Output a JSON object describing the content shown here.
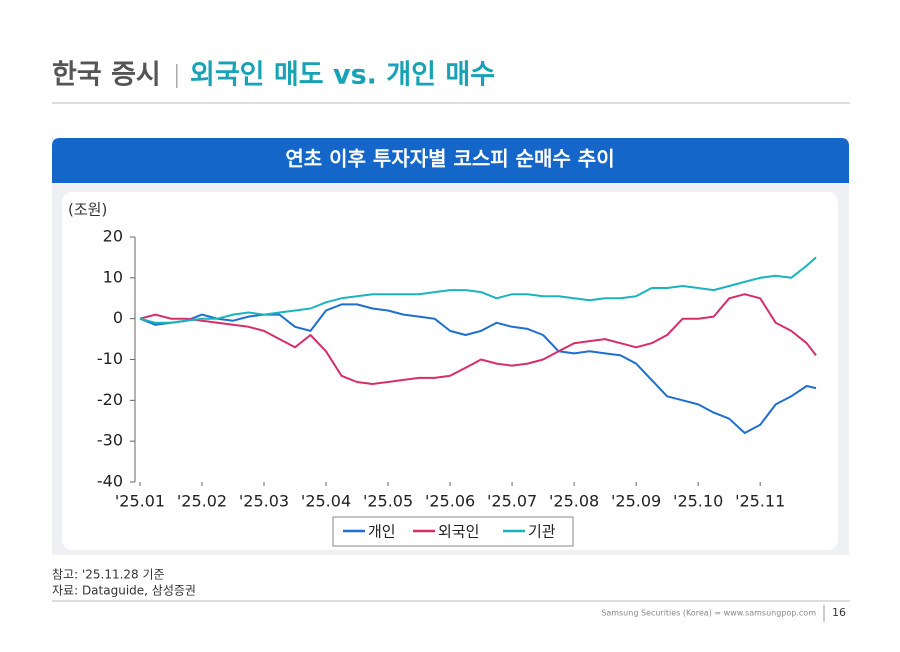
{
  "header": {
    "title": "한국 증시",
    "subtitle": "외국인 매도 vs. 개인 매수"
  },
  "chart_data": {
    "type": "line",
    "title": "연초 이후 투자자별 코스피 순매수 추이",
    "y_label": "(조원)",
    "x": [
      1.0,
      1.25,
      1.5,
      1.75,
      2.0,
      2.25,
      2.5,
      2.75,
      3.0,
      3.25,
      3.5,
      3.75,
      4.0,
      4.25,
      4.5,
      4.75,
      5.0,
      5.25,
      5.5,
      5.75,
      6.0,
      6.25,
      6.5,
      6.75,
      7.0,
      7.25,
      7.5,
      7.75,
      8.0,
      8.25,
      8.5,
      8.75,
      9.0,
      9.25,
      9.5,
      9.75,
      10.0,
      10.25,
      10.5,
      10.75,
      11.0,
      11.25,
      11.5,
      11.75,
      11.9
    ],
    "xlim": [
      0.92,
      11.9
    ],
    "xticks": [
      {
        "value": 1,
        "label": "'25.01"
      },
      {
        "value": 2,
        "label": "'25.02"
      },
      {
        "value": 3,
        "label": "'25.03"
      },
      {
        "value": 4,
        "label": "'25.04"
      },
      {
        "value": 5,
        "label": "'25.05"
      },
      {
        "value": 6,
        "label": "'25.06"
      },
      {
        "value": 7,
        "label": "'25.07"
      },
      {
        "value": 8,
        "label": "'25.08"
      },
      {
        "value": 9,
        "label": "'25.09"
      },
      {
        "value": 10,
        "label": "'25.10"
      },
      {
        "value": 11,
        "label": "'25.11"
      }
    ],
    "ylim": [
      -40,
      20
    ],
    "yticks": [
      -40,
      -30,
      -20,
      -10,
      0,
      10,
      20
    ],
    "legend": "bottom",
    "series": [
      {
        "name": "개인",
        "color": "#1f6fd1",
        "values": [
          0,
          -1.5,
          -1,
          -0.5,
          1,
          0,
          -0.5,
          0.5,
          1,
          1,
          -2,
          -3,
          2,
          3.5,
          3.5,
          2.5,
          2,
          1,
          0.5,
          0,
          -3,
          -4,
          -3,
          -1,
          -2,
          -2.5,
          -4,
          -8,
          -8.5,
          -8,
          -8.5,
          -9,
          -11,
          -15,
          -19,
          -20,
          -21,
          -23,
          -24.5,
          -28,
          -26,
          -21,
          -19,
          -16.5,
          -17
        ]
      },
      {
        "name": "외국인",
        "color": "#d62f68",
        "values": [
          0,
          1,
          0,
          0,
          -0.5,
          -1,
          -1.5,
          -2,
          -3,
          -5,
          -7,
          -4,
          -8,
          -14,
          -15.5,
          -16,
          -15.5,
          -15,
          -14.5,
          -14.5,
          -14,
          -12,
          -10,
          -11,
          -11.5,
          -11,
          -10,
          -8,
          -6,
          -5.5,
          -5,
          -6,
          -7,
          -6,
          -4,
          0,
          0,
          0.5,
          5,
          6,
          5,
          -1,
          -3,
          -6,
          -9
        ]
      },
      {
        "name": "기관",
        "color": "#1bb3be",
        "values": [
          0,
          -1,
          -1,
          -0.5,
          0,
          0,
          1,
          1.5,
          1,
          1.5,
          2,
          2.5,
          4,
          5,
          5.5,
          6,
          6,
          6,
          6,
          6.5,
          7,
          7,
          6.5,
          5,
          6,
          6,
          5.5,
          5.5,
          5,
          4.5,
          5,
          5,
          5.5,
          7.5,
          7.5,
          8,
          7.5,
          7,
          8,
          9,
          10,
          10.5,
          10,
          13,
          15
        ]
      }
    ]
  },
  "notes": [
    "참고: '25.11.28 기준",
    "자료: Dataguide, 삼성증권"
  ],
  "footer": {
    "source": "Samsung Securities (Korea) = www.samsungpop.com",
    "page": "16"
  }
}
